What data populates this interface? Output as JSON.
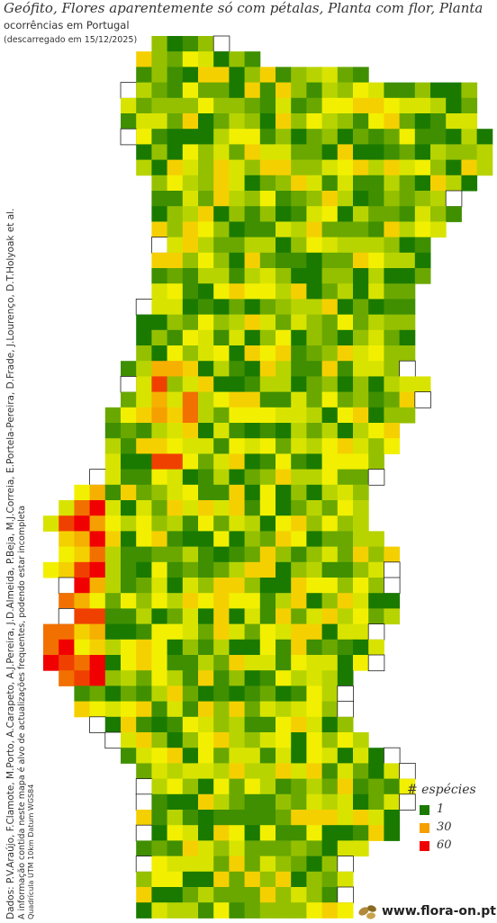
{
  "title": "Geófito, Flores aparentemente só com pétalas, Planta com flor, Planta",
  "subtitle": "ocorrências em Portugal",
  "download_note": "(descarregado em 15/12/2025)",
  "credits": {
    "authors": "Dados: P.V.Araújo, F.Clamote, M.Porto, A.Carapeto, A.J.Pereira, J.D.Almeida, P.Beja, M.J.Correia, E.Portela-Pereira, D.Frade, J.Lourenço, D.T.Holyoak et al.",
    "disclaimer": "A informação contida neste mapa é alvo de actualizações frequentes, podendo estar incompleta",
    "grid": "Quadrícula UTM 10km Datum WGS84"
  },
  "legend": {
    "title": "# espécies",
    "items": [
      {
        "label": "1",
        "color": "#1a7a00"
      },
      {
        "label": "30",
        "color": "#f5a000"
      },
      {
        "label": "60",
        "color": "#f00000"
      }
    ]
  },
  "colors": {
    "scale_low": "#1a7a00",
    "scale_mid_low": "#a0c800",
    "scale_mid": "#f0f000",
    "scale_mid_high": "#f5a000",
    "scale_high": "#f00000"
  },
  "logo": {
    "text": "www.flora-on.pt",
    "icon": "seeds-logo-icon"
  }
}
